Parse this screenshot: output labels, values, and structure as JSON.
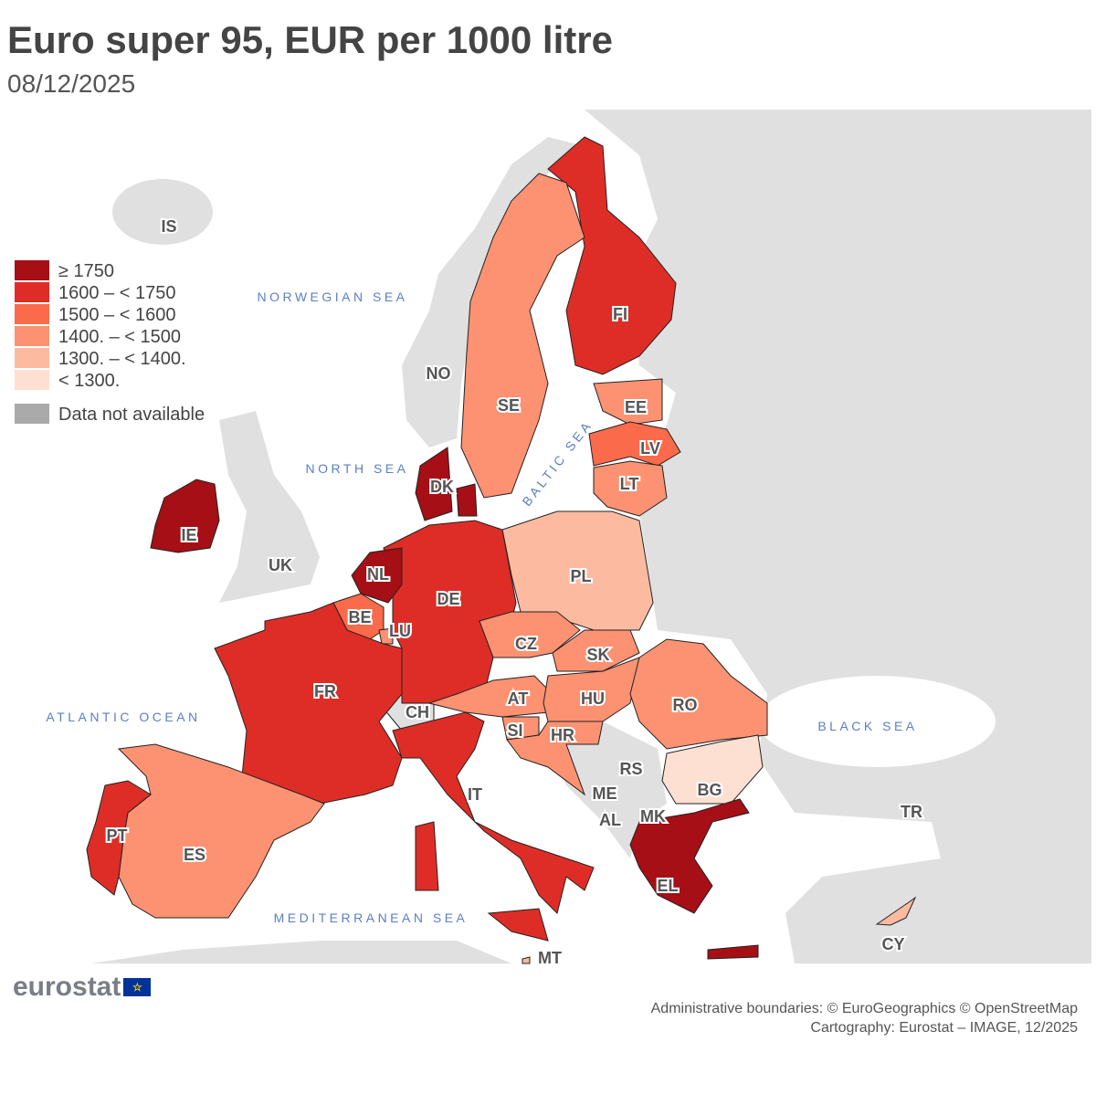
{
  "header": {
    "title": "Euro super 95, EUR per 1000 litre",
    "date": "08/12/2025"
  },
  "legend": {
    "classes": [
      {
        "label": "≥ 1750",
        "color": "#a50f15"
      },
      {
        "label": "1600 – < 1750",
        "color": "#de2d26"
      },
      {
        "label": "1500 – < 1600",
        "color": "#fb6a4a"
      },
      {
        "label": "1400. – < 1500",
        "color": "#fc9272"
      },
      {
        "label": "1300. – < 1400.",
        "color": "#fcbba1"
      },
      {
        "label": "< 1300.",
        "color": "#fee0d2"
      }
    ],
    "not_available": {
      "label": "Data not available",
      "color": "#aaaaaa"
    }
  },
  "seas": {
    "norwegian": "NORWEGIAN SEA",
    "north": "NORTH SEA",
    "baltic": "BALTIC SEA",
    "atlantic": "ATLANTIC OCEAN",
    "black": "BLACK SEA",
    "mediterranean": "MEDITERRANEAN SEA"
  },
  "countries": {
    "IE": {
      "label": "IE",
      "class": 0
    },
    "DK": {
      "label": "DK",
      "class": 0
    },
    "NL": {
      "label": "NL",
      "class": 0
    },
    "EL": {
      "label": "EL",
      "class": 0
    },
    "FI": {
      "label": "FI",
      "class": 1
    },
    "DE": {
      "label": "DE",
      "class": 1
    },
    "FR": {
      "label": "FR",
      "class": 1
    },
    "IT": {
      "label": "IT",
      "class": 1
    },
    "PT": {
      "label": "PT",
      "class": 1
    },
    "LV": {
      "label": "LV",
      "class": 2
    },
    "BE": {
      "label": "BE",
      "class": 2
    },
    "SE": {
      "label": "SE",
      "class": 3
    },
    "EE": {
      "label": "EE",
      "class": 3
    },
    "LT": {
      "label": "LT",
      "class": 3
    },
    "LU": {
      "label": "LU",
      "class": 3
    },
    "CZ": {
      "label": "CZ",
      "class": 3
    },
    "SK": {
      "label": "SK",
      "class": 3
    },
    "HU": {
      "label": "HU",
      "class": 3
    },
    "AT": {
      "label": "AT",
      "class": 3
    },
    "SI": {
      "label": "SI",
      "class": 3
    },
    "HR": {
      "label": "HR",
      "class": 3
    },
    "RO": {
      "label": "RO",
      "class": 3
    },
    "ES": {
      "label": "ES",
      "class": 3
    },
    "PL": {
      "label": "PL",
      "class": 4
    },
    "CY": {
      "label": "CY",
      "class": 4
    },
    "MT": {
      "label": "MT",
      "class": 4
    },
    "BG": {
      "label": "BG",
      "class": 5
    }
  },
  "non_eu": {
    "IS": "IS",
    "NO": "NO",
    "UK": "UK",
    "CH": "CH",
    "RS": "RS",
    "ME": "ME",
    "AL": "AL",
    "MK": "MK",
    "TR": "TR"
  },
  "logo": "eurostat",
  "credits": {
    "line1": "Administrative boundaries: © EuroGeographics © OpenStreetMap",
    "line2": "Cartography: Eurostat – IMAGE, 12/2025"
  }
}
